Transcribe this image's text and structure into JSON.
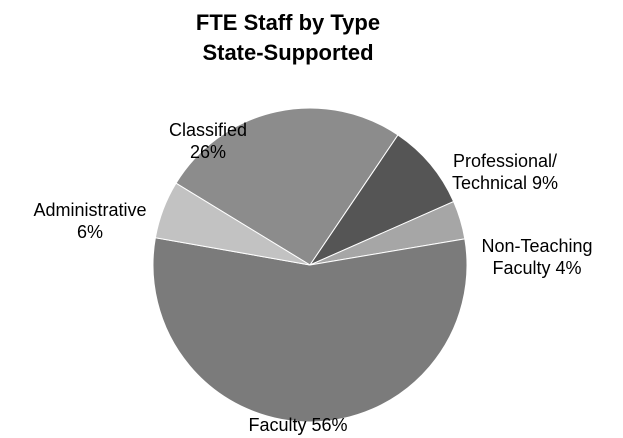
{
  "chart_data": {
    "type": "pie",
    "title": "FTE Staff by Type",
    "subtitle": "State-Supported",
    "categories": [
      "Classified",
      "Professional/ Technical",
      "Non-Teaching Faculty",
      "Faculty",
      "Administrative"
    ],
    "values": [
      26,
      9,
      4,
      56,
      6
    ],
    "value_labels": [
      "26%",
      "9%",
      "4%",
      "56%",
      "6%"
    ],
    "colors": [
      "#8c8c8c",
      "#555555",
      "#a6a6a6",
      "#7b7b7b",
      "#c2c2c2"
    ]
  }
}
